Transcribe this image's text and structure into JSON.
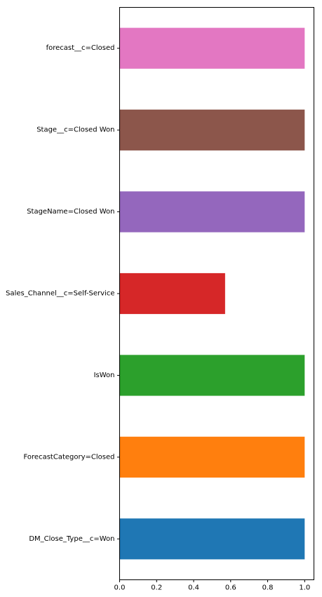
{
  "chart_data": {
    "type": "bar",
    "orientation": "horizontal",
    "categories": [
      "DM_Close_Type__c=Won",
      "ForecastCategory=Closed",
      "IsWon",
      "Sales_Channel__c=Self-Service",
      "StageName=Closed Won",
      "Stage__c=Closed Won",
      "forecast__c=Closed"
    ],
    "values": [
      1.0,
      1.0,
      1.0,
      0.57,
      1.0,
      1.0,
      1.0
    ],
    "colors": [
      "#1f77b4",
      "#ff7f0e",
      "#2ca02c",
      "#d62728",
      "#9467bd",
      "#8c564b",
      "#e377c2"
    ],
    "xlim": [
      0,
      1.05
    ],
    "xticks": [
      0.0,
      0.2,
      0.4,
      0.6,
      0.8,
      1.0
    ],
    "xtick_labels": [
      "0.0",
      "0.2",
      "0.4",
      "0.6",
      "0.8",
      "1.0"
    ],
    "title": "",
    "xlabel": "",
    "ylabel": "",
    "grid": false,
    "legend": "none"
  }
}
